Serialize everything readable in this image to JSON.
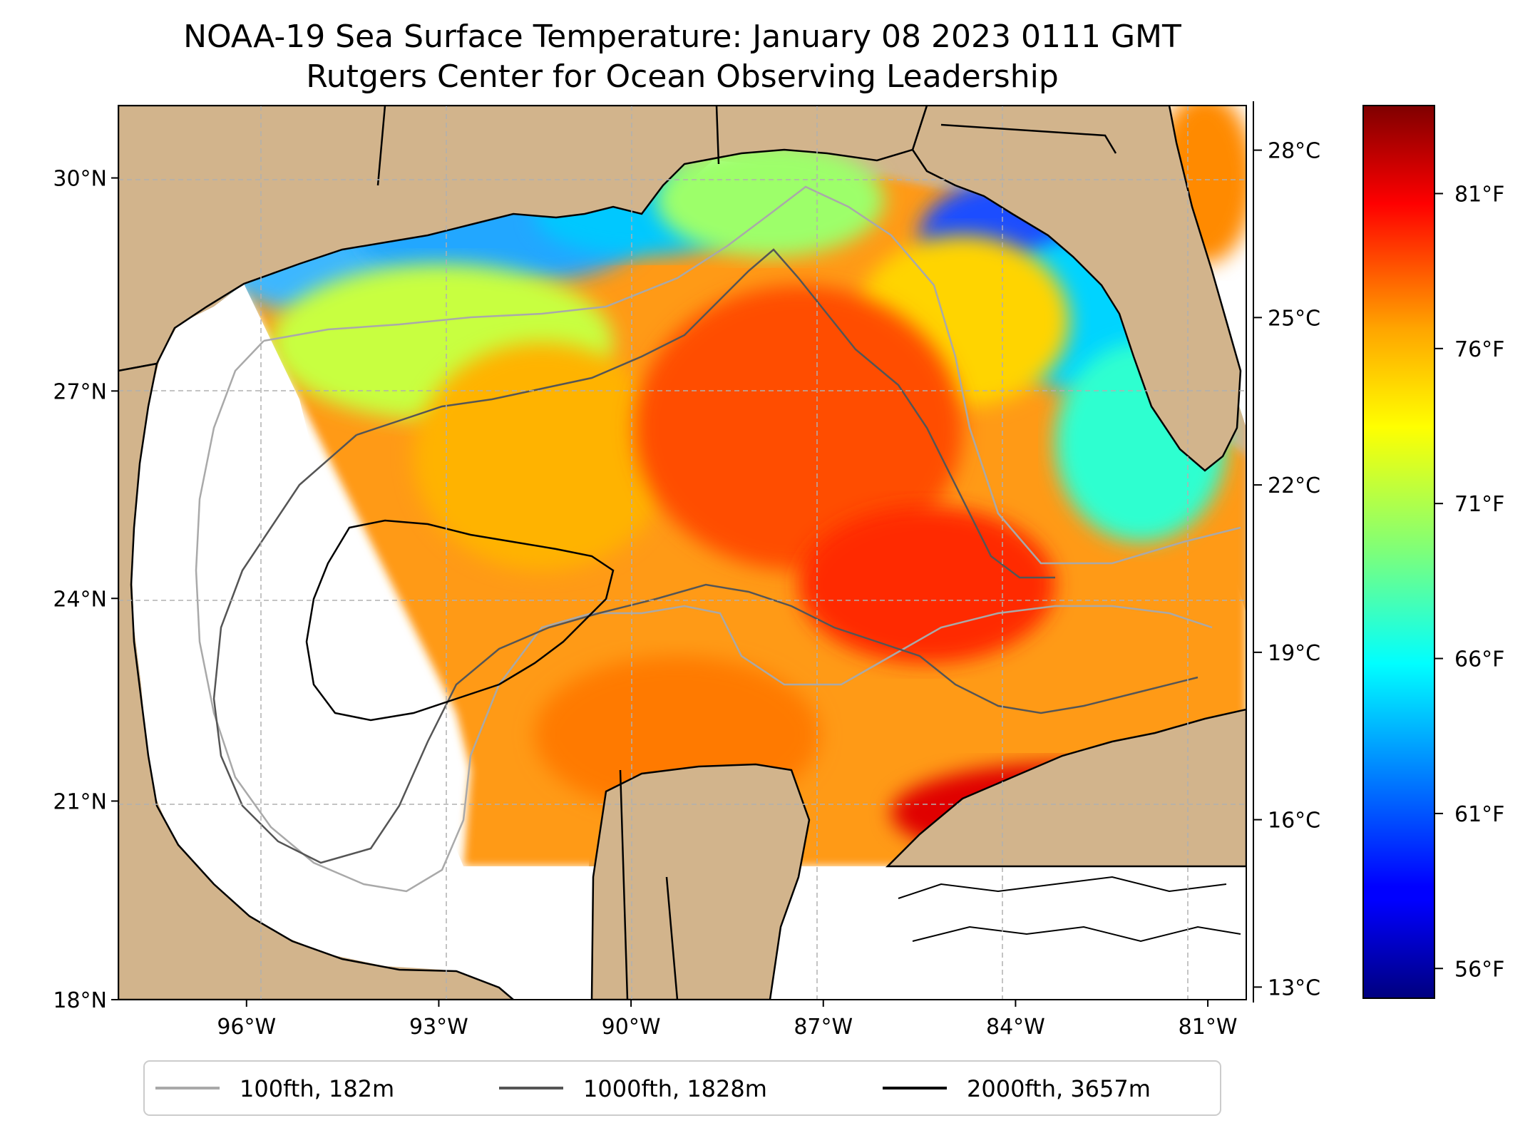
{
  "figure": {
    "title_line1": "NOAA-19 Sea Surface Temperature: January 08 2023 0111 GMT",
    "title_line2": "Rutgers Center for Ocean Observing Leadership"
  },
  "map": {
    "extent": {
      "lon_min": -98.0,
      "lon_max": -80.4,
      "lat_min": 18.0,
      "lat_max": 31.0
    },
    "land_color": "#d2b48c",
    "grid": true,
    "lat_ticks": [
      {
        "value": 18,
        "label": "18°N"
      },
      {
        "value": 21,
        "label": "21°N"
      },
      {
        "value": 24,
        "label": "24°N"
      },
      {
        "value": 27,
        "label": "27°N"
      },
      {
        "value": 30,
        "label": "30°N"
      }
    ],
    "lon_ticks": [
      {
        "value": -96,
        "label": "96°W"
      },
      {
        "value": -93,
        "label": "93°W"
      },
      {
        "value": -90,
        "label": "90°W"
      },
      {
        "value": -87,
        "label": "87°W"
      },
      {
        "value": -84,
        "label": "84°W"
      },
      {
        "value": -81,
        "label": "81°W"
      }
    ]
  },
  "colorbar": {
    "colormap": "jet",
    "min_c": 12.8,
    "max_c": 28.8,
    "celsius_ticks": [
      {
        "value": 13,
        "label": "13°C"
      },
      {
        "value": 16,
        "label": "16°C"
      },
      {
        "value": 19,
        "label": "19°C"
      },
      {
        "value": 22,
        "label": "22°C"
      },
      {
        "value": 25,
        "label": "25°C"
      },
      {
        "value": 28,
        "label": "28°C"
      }
    ],
    "fahrenheit_ticks": [
      {
        "value": 56,
        "label": "56°F"
      },
      {
        "value": 61,
        "label": "61°F"
      },
      {
        "value": 66,
        "label": "66°F"
      },
      {
        "value": 71,
        "label": "71°F"
      },
      {
        "value": 76,
        "label": "76°F"
      },
      {
        "value": 81,
        "label": "81°F"
      }
    ]
  },
  "legend": {
    "placement": "bottom-center",
    "items": [
      {
        "label": "100fth, 182m",
        "color": "#a9a9a9"
      },
      {
        "label": "1000fth, 1828m",
        "color": "#555555"
      },
      {
        "label": "2000fth, 3657m",
        "color": "#000000"
      }
    ]
  }
}
